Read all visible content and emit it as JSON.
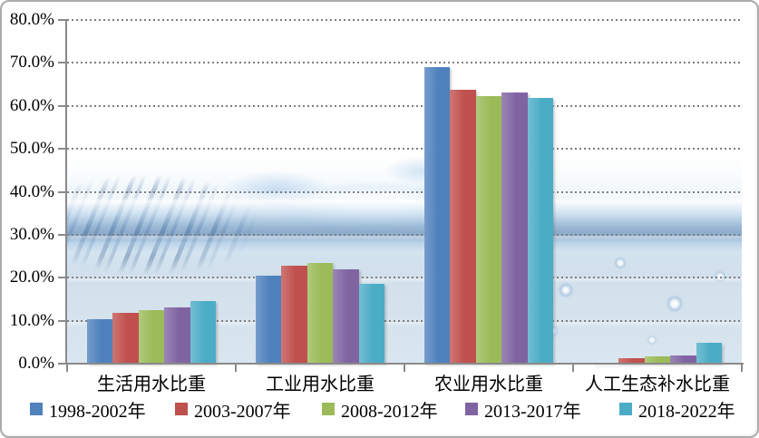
{
  "chart_data": {
    "type": "bar",
    "title": "",
    "xlabel": "",
    "ylabel": "",
    "categories": [
      "生活用水比重",
      "工业用水比重",
      "农业用水比重",
      "人工生态补水比重"
    ],
    "series": [
      {
        "name": "1998-2002年",
        "color": "#4F81BD",
        "values": [
          10.4,
          20.4,
          69.0,
          0.1
        ]
      },
      {
        "name": "2003-2007年",
        "color": "#C0504D",
        "values": [
          11.9,
          22.7,
          63.7,
          1.3
        ]
      },
      {
        "name": "2008-2012年",
        "color": "#9BBB59",
        "values": [
          12.4,
          23.4,
          62.2,
          1.6
        ]
      },
      {
        "name": "2013-2017年",
        "color": "#8064A2",
        "values": [
          13.0,
          21.9,
          63.1,
          1.8
        ]
      },
      {
        "name": "2018-2022年",
        "color": "#4BACC6",
        "values": [
          14.6,
          18.5,
          61.9,
          4.8
        ]
      }
    ],
    "ylim": [
      0,
      80
    ],
    "ytick_step": 10,
    "ytick_labels": [
      "0.0%",
      "10.0%",
      "20.0%",
      "30.0%",
      "40.0%",
      "50.0%",
      "60.0%",
      "70.0%",
      "80.0%"
    ],
    "grid": "horizontal-dotted",
    "legend_position": "bottom",
    "bar_gap_within_group": 0
  },
  "style": {
    "gridline_color": "#7F7F7F",
    "axis_color": "#8A8A8A",
    "text_color": "#000000",
    "frame_border_color": "#ABABAB",
    "background": "#FFFFFF"
  }
}
